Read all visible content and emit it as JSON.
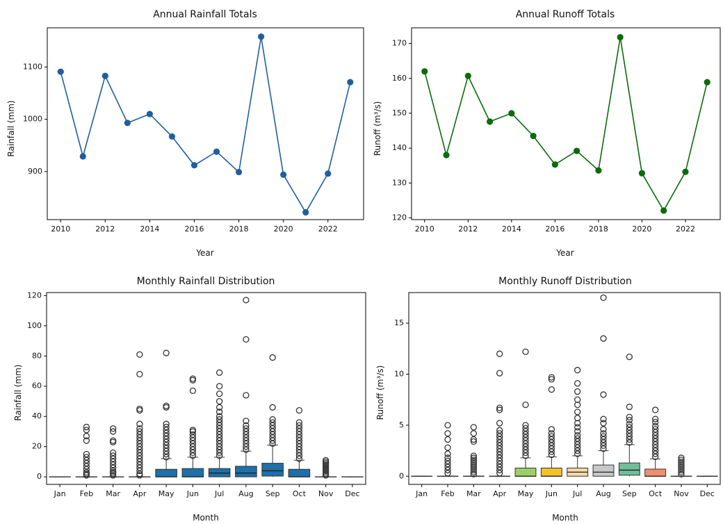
{
  "chart_data": [
    {
      "type": "line",
      "title": "Annual Rainfall Totals",
      "xlabel": "Year",
      "ylabel": "Rainfall (mm)",
      "color": "#1f5f9e",
      "x": [
        2010,
        2011,
        2012,
        2013,
        2014,
        2015,
        2016,
        2017,
        2018,
        2019,
        2020,
        2021,
        2022,
        2023
      ],
      "y": [
        1091,
        929,
        1083,
        993,
        1010,
        967,
        912,
        938,
        899,
        1158,
        894,
        822,
        896,
        1071
      ],
      "xlim": [
        2009.4,
        2023.6
      ],
      "ylim": [
        808,
        1175
      ],
      "xticks": [
        2010,
        2012,
        2014,
        2016,
        2018,
        2020,
        2022
      ],
      "yticks": [
        900,
        1000,
        1100
      ],
      "grid": false
    },
    {
      "type": "line",
      "title": "Annual Runoff Totals",
      "xlabel": "Year",
      "ylabel": "Runoff (m³/s)",
      "color": "#0a6b0a",
      "x": [
        2010,
        2011,
        2012,
        2013,
        2014,
        2015,
        2016,
        2017,
        2018,
        2019,
        2020,
        2021,
        2022,
        2023
      ],
      "y": [
        162,
        138,
        160.7,
        147.6,
        150,
        143.5,
        135.3,
        139.2,
        133.6,
        171.8,
        132.8,
        122.1,
        133.2,
        158.9
      ],
      "xlim": [
        2009.4,
        2023.6
      ],
      "ylim": [
        119.5,
        174.5
      ],
      "xticks": [
        2010,
        2012,
        2014,
        2016,
        2018,
        2020,
        2022
      ],
      "yticks": [
        120,
        130,
        140,
        150,
        160,
        170
      ],
      "grid": false
    },
    {
      "type": "box",
      "title": "Monthly Rainfall Distribution",
      "xlabel": "Month",
      "ylabel": "Rainfall (mm)",
      "categories": [
        "Jan",
        "Feb",
        "Mar",
        "Apr",
        "May",
        "Jun",
        "Jul",
        "Aug",
        "Sep",
        "Oct",
        "Nov",
        "Dec"
      ],
      "ylim": [
        -5,
        122
      ],
      "yticks": [
        0,
        20,
        40,
        60,
        80,
        100,
        120
      ],
      "colors": [
        "#1f6fa8",
        "#1f6fa8",
        "#1f6fa8",
        "#1f6fa8",
        "#1f6fa8",
        "#1f6fa8",
        "#1f6fa8",
        "#1f6fa8",
        "#1f6fa8",
        "#1f6fa8",
        "#1f6fa8",
        "#1f6fa8"
      ],
      "boxes": [
        {
          "q1": 0,
          "median": 0,
          "q3": 0,
          "whisker_high": 0,
          "outliers": []
        },
        {
          "q1": 0,
          "median": 0,
          "q3": 0,
          "whisker_high": 0,
          "outliers": [
            1,
            2,
            3,
            5,
            7,
            9,
            11,
            13,
            15,
            24,
            27,
            31,
            33
          ]
        },
        {
          "q1": 0,
          "median": 0,
          "q3": 0,
          "whisker_high": 0,
          "outliers": [
            1,
            2,
            3,
            4,
            6,
            8,
            10,
            12,
            14,
            16,
            23,
            24,
            30,
            32
          ]
        },
        {
          "q1": 0,
          "median": 0,
          "q3": 0,
          "whisker_high": 0,
          "outliers": [
            1,
            2,
            4,
            6,
            8,
            10,
            12,
            14,
            16,
            18,
            20,
            22,
            24,
            26,
            28,
            30,
            32,
            35,
            44,
            45,
            68,
            81
          ]
        },
        {
          "q1": 0,
          "median": 0,
          "q3": 5,
          "whisker_high": 12,
          "outliers": [
            13,
            15,
            17,
            19,
            21,
            23,
            25,
            27,
            29,
            31,
            33,
            35,
            46,
            47,
            82
          ]
        },
        {
          "q1": 0,
          "median": 0,
          "q3": 5.5,
          "whisker_high": 13,
          "outliers": [
            14,
            16,
            18,
            20,
            22,
            24,
            26,
            28,
            30,
            31,
            57,
            64,
            65
          ]
        },
        {
          "q1": 0,
          "median": 2.5,
          "q3": 5.5,
          "whisker_high": 13,
          "outliers": [
            14,
            16,
            18,
            20,
            22,
            24,
            26,
            28,
            30,
            32,
            34,
            36,
            38,
            40,
            43,
            46,
            50,
            55,
            60,
            69
          ]
        },
        {
          "q1": 0,
          "median": 2.5,
          "q3": 7,
          "whisker_high": 17,
          "outliers": [
            18,
            20,
            22,
            24,
            26,
            28,
            30,
            32,
            34,
            37,
            54,
            91,
            117
          ]
        },
        {
          "q1": 0.5,
          "median": 4,
          "q3": 9,
          "whisker_high": 21,
          "outliers": [
            22,
            24,
            26,
            28,
            30,
            32,
            34,
            36,
            38,
            46,
            79
          ]
        },
        {
          "q1": 0,
          "median": 0,
          "q3": 5,
          "whisker_high": 11,
          "outliers": [
            12,
            14,
            16,
            18,
            20,
            22,
            24,
            26,
            28,
            30,
            32,
            34,
            36,
            44
          ]
        },
        {
          "q1": 0,
          "median": 0,
          "q3": 0,
          "whisker_high": 0,
          "outliers": [
            1,
            2,
            3,
            4,
            5,
            6,
            7,
            8,
            9,
            10,
            11
          ]
        },
        {
          "q1": 0,
          "median": 0,
          "q3": 0,
          "whisker_high": 0,
          "outliers": []
        }
      ]
    },
    {
      "type": "box",
      "title": "Monthly Runoff Distribution",
      "xlabel": "Month",
      "ylabel": "Runoff (m³/s)",
      "categories": [
        "Jan",
        "Feb",
        "Mar",
        "Apr",
        "May",
        "Jun",
        "Jul",
        "Aug",
        "Sep",
        "Oct",
        "Nov",
        "Dec"
      ],
      "ylim": [
        -0.8,
        18
      ],
      "yticks": [
        0,
        5,
        10,
        15
      ],
      "colors": [
        "#cfe6f2",
        "#4a8fc2",
        "#d98b87",
        "#d2b6df",
        "#9ccf6c",
        "#f2c12e",
        "#f4d9a5",
        "#c8c8c8",
        "#6fbf9a",
        "#f08f6f",
        "#9fb8d9",
        "#e8a8c8"
      ],
      "boxes": [
        {
          "q1": 0,
          "median": 0,
          "q3": 0,
          "whisker_high": 0,
          "outliers": []
        },
        {
          "q1": 0,
          "median": 0,
          "q3": 0,
          "whisker_high": 0,
          "outliers": [
            0.3,
            0.6,
            0.9,
            1.2,
            1.5,
            1.8,
            2.2,
            2.8,
            3.6,
            4.2,
            5
          ]
        },
        {
          "q1": 0,
          "median": 0,
          "q3": 0,
          "whisker_high": 0,
          "outliers": [
            0.2,
            0.4,
            0.6,
            0.8,
            1,
            1.2,
            1.4,
            1.6,
            1.8,
            2,
            3.4,
            3.6,
            4.2,
            4.8
          ]
        },
        {
          "q1": 0,
          "median": 0,
          "q3": 0,
          "whisker_high": 0,
          "outliers": [
            0.3,
            0.6,
            0.9,
            1.2,
            1.5,
            1.8,
            2.1,
            2.4,
            2.7,
            3,
            3.3,
            3.6,
            3.9,
            4.2,
            4.5,
            5.2,
            6.5,
            6.7,
            10.1,
            12
          ]
        },
        {
          "q1": 0,
          "median": 0,
          "q3": 0.8,
          "whisker_high": 1.8,
          "outliers": [
            2,
            2.3,
            2.6,
            2.9,
            3.2,
            3.5,
            3.8,
            4.1,
            4.4,
            4.7,
            5,
            7,
            12.2
          ]
        },
        {
          "q1": 0,
          "median": 0,
          "q3": 0.8,
          "whisker_high": 1.9,
          "outliers": [
            2.1,
            2.4,
            2.7,
            3,
            3.3,
            3.6,
            3.9,
            4.2,
            4.6,
            8.5,
            9.5,
            9.7
          ]
        },
        {
          "q1": 0,
          "median": 0.4,
          "q3": 0.8,
          "whisker_high": 2,
          "outliers": [
            2.2,
            2.5,
            2.8,
            3.1,
            3.4,
            3.7,
            4,
            4.4,
            4.8,
            5.2,
            5.7,
            6.3,
            7,
            7.5,
            8.3,
            9.1,
            10.4
          ]
        },
        {
          "q1": 0,
          "median": 0.4,
          "q3": 1.1,
          "whisker_high": 2.5,
          "outliers": [
            2.7,
            3,
            3.3,
            3.6,
            3.9,
            4.2,
            4.6,
            5.2,
            5.6,
            8,
            13.5,
            17.5
          ]
        },
        {
          "q1": 0.1,
          "median": 0.6,
          "q3": 1.3,
          "whisker_high": 3.1,
          "outliers": [
            3.3,
            3.6,
            3.9,
            4.2,
            4.5,
            4.8,
            5.1,
            5.5,
            5.8,
            6.8,
            11.7
          ]
        },
        {
          "q1": 0,
          "median": 0,
          "q3": 0.7,
          "whisker_high": 1.7,
          "outliers": [
            1.9,
            2.2,
            2.5,
            2.8,
            3.1,
            3.4,
            3.7,
            4,
            4.3,
            4.6,
            4.9,
            5.3,
            5.6,
            6.5
          ]
        },
        {
          "q1": 0,
          "median": 0,
          "q3": 0,
          "whisker_high": 0,
          "outliers": [
            0.2,
            0.4,
            0.6,
            0.8,
            1,
            1.2,
            1.4,
            1.6,
            1.8
          ]
        },
        {
          "q1": 0,
          "median": 0,
          "q3": 0,
          "whisker_high": 0,
          "outliers": []
        }
      ]
    }
  ]
}
